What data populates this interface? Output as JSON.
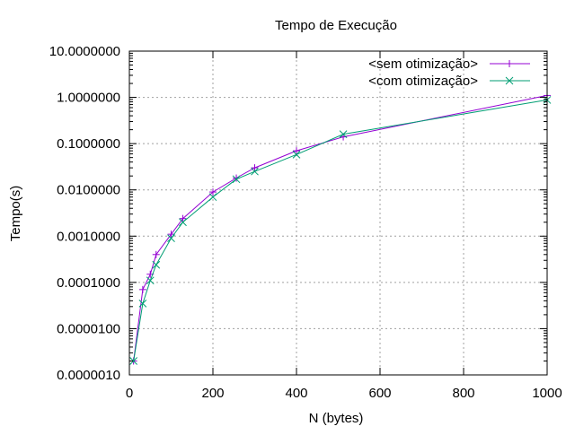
{
  "chart_data": {
    "type": "line",
    "title": "Tempo de Execução",
    "xlabel": "N (bytes)",
    "ylabel": "Tempo(s)",
    "xlim": [
      0,
      1000
    ],
    "ylim": [
      1e-06,
      10
    ],
    "yscale": "log",
    "grid": true,
    "legend_position": "top-right",
    "x_ticks": [
      0,
      200,
      400,
      600,
      800,
      1000
    ],
    "x_tick_labels": [
      "0",
      "200",
      "400",
      "600",
      "800",
      "1000"
    ],
    "y_ticks": [
      1e-06,
      1e-05,
      0.0001,
      0.001,
      0.01,
      0.1,
      1,
      10
    ],
    "y_tick_labels": [
      "0.0000010",
      "0.0000100",
      "0.0001000",
      "0.0010000",
      "0.0100000",
      "0.1000000",
      "1.0000000",
      "10.0000000"
    ],
    "series": [
      {
        "name": "<sem otimização>",
        "color": "#9400d3",
        "marker": "plus",
        "x": [
          10,
          32,
          50,
          64,
          100,
          128,
          200,
          256,
          300,
          400,
          512,
          1000
        ],
        "y": [
          2e-06,
          7e-05,
          0.00015,
          0.0004,
          0.0011,
          0.0024,
          0.009,
          0.018,
          0.03,
          0.07,
          0.14,
          1.1
        ]
      },
      {
        "name": "<com otimização>",
        "color": "#009e73",
        "marker": "cross",
        "x": [
          10,
          32,
          50,
          64,
          100,
          128,
          200,
          256,
          300,
          400,
          512,
          1000
        ],
        "y": [
          2e-06,
          3.5e-05,
          0.00011,
          0.00024,
          0.0009,
          0.002,
          0.007,
          0.017,
          0.025,
          0.058,
          0.16,
          0.88
        ]
      }
    ]
  }
}
